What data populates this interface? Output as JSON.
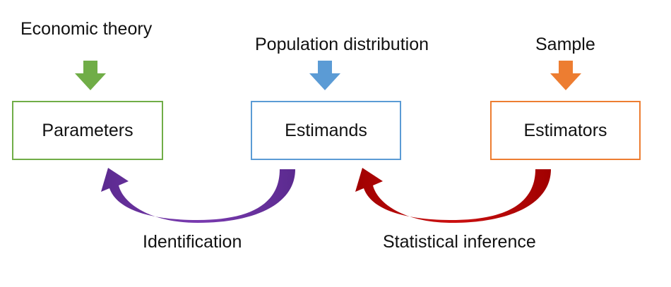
{
  "inputs": {
    "theory": "Economic theory",
    "population": "Population distribution",
    "sample": "Sample"
  },
  "nodes": {
    "parameters": "Parameters",
    "estimands": "Estimands",
    "estimators": "Estimators"
  },
  "arcs": {
    "identification": "Identification",
    "inference": "Statistical inference"
  },
  "colors": {
    "green": "#70AD47",
    "blue": "#5B9BD5",
    "orange": "#ED7D31",
    "purple": "#7030A0",
    "red": "#C00000"
  }
}
